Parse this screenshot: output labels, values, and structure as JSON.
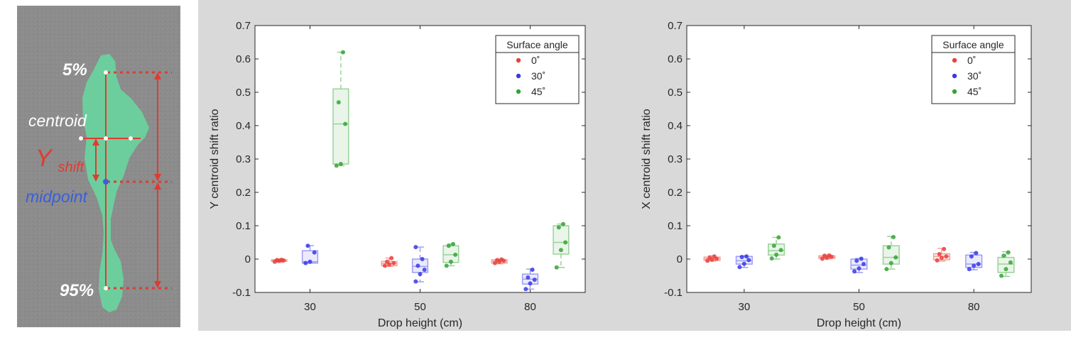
{
  "annotation": {
    "label_top": "5%",
    "label_bottom": "95%",
    "label_centroid": "centroid",
    "label_shift_main": "Y",
    "label_shift_sub": "shift",
    "label_midpoint": "midpoint"
  },
  "chart_data": [
    {
      "type": "box",
      "xlabel": "Drop height (cm)",
      "ylabel": "Y centroid shift ratio",
      "categories": [
        "30",
        "50",
        "80"
      ],
      "ylim": [
        -0.1,
        0.7
      ],
      "yticks": [
        -0.1,
        0,
        0.1,
        0.2,
        0.3,
        0.4,
        0.5,
        0.6,
        0.7
      ],
      "legend": {
        "title": "Surface angle",
        "position": "top-right"
      },
      "series": [
        {
          "name": "0˚",
          "color": "#e8413b",
          "boxes": [
            {
              "category": "30",
              "q1": -0.007,
              "median": -0.004,
              "q3": -0.002,
              "whisker_low": -0.01,
              "whisker_high": 0.0,
              "points": [
                -0.008,
                -0.005,
                -0.004,
                -0.003,
                -0.002
              ]
            },
            {
              "category": "50",
              "q1": -0.02,
              "median": -0.013,
              "q3": -0.007,
              "whisker_low": -0.022,
              "whisker_high": 0.003,
              "points": [
                -0.02,
                -0.016,
                -0.012,
                -0.008,
                0.003
              ]
            },
            {
              "category": "80",
              "q1": -0.012,
              "median": -0.006,
              "q3": -0.002,
              "whisker_low": -0.014,
              "whisker_high": 0.0,
              "points": [
                -0.012,
                -0.008,
                -0.005,
                -0.003,
                -0.001
              ]
            }
          ]
        },
        {
          "name": "30˚",
          "color": "#3a3ae8",
          "boxes": [
            {
              "category": "30",
              "q1": -0.012,
              "median": -0.008,
              "q3": 0.025,
              "whisker_low": -0.012,
              "whisker_high": 0.04,
              "points": [
                -0.012,
                -0.008,
                0.02,
                0.04
              ]
            },
            {
              "category": "50",
              "q1": -0.04,
              "median": -0.022,
              "q3": 0.0,
              "whisker_low": -0.068,
              "whisker_high": 0.036,
              "points": [
                -0.067,
                -0.045,
                -0.032,
                -0.02,
                0.0,
                0.036
              ]
            },
            {
              "category": "80",
              "q1": -0.075,
              "median": -0.06,
              "q3": -0.045,
              "whisker_low": -0.09,
              "whisker_high": -0.03,
              "points": [
                -0.09,
                -0.073,
                -0.062,
                -0.055,
                -0.032
              ]
            }
          ]
        },
        {
          "name": "45˚",
          "color": "#35a535",
          "boxes": [
            {
              "category": "30",
              "q1": 0.285,
              "median": 0.405,
              "q3": 0.51,
              "whisker_low": 0.28,
              "whisker_high": 0.62,
              "points": [
                0.28,
                0.285,
                0.405,
                0.47,
                0.62
              ]
            },
            {
              "category": "50",
              "q1": -0.01,
              "median": 0.013,
              "q3": 0.04,
              "whisker_low": -0.02,
              "whisker_high": 0.045,
              "points": [
                -0.02,
                -0.008,
                0.013,
                0.04,
                0.045
              ]
            },
            {
              "category": "80",
              "q1": 0.015,
              "median": 0.05,
              "q3": 0.1,
              "whisker_low": -0.025,
              "whisker_high": 0.105,
              "points": [
                -0.025,
                0.027,
                0.05,
                0.095,
                0.105
              ]
            }
          ]
        }
      ]
    },
    {
      "type": "box",
      "xlabel": "Drop height (cm)",
      "ylabel": "X centroid shift ratio",
      "categories": [
        "30",
        "50",
        "80"
      ],
      "ylim": [
        -0.1,
        0.7
      ],
      "yticks": [
        -0.1,
        0,
        0.1,
        0.2,
        0.3,
        0.4,
        0.5,
        0.6,
        0.7
      ],
      "legend": {
        "title": "Surface angle",
        "position": "top-right"
      },
      "series": [
        {
          "name": "0˚",
          "color": "#e8413b",
          "boxes": [
            {
              "category": "30",
              "q1": -0.004,
              "median": 0.001,
              "q3": 0.006,
              "whisker_low": -0.006,
              "whisker_high": 0.01,
              "points": [
                -0.005,
                -0.002,
                0.001,
                0.004,
                0.008
              ]
            },
            {
              "category": "50",
              "q1": 0.002,
              "median": 0.006,
              "q3": 0.01,
              "whisker_low": 0.0,
              "whisker_high": 0.012,
              "points": [
                0.001,
                0.004,
                0.007,
                0.01,
                0.011
              ]
            },
            {
              "category": "80",
              "q1": -0.002,
              "median": 0.008,
              "q3": 0.016,
              "whisker_low": -0.006,
              "whisker_high": 0.032,
              "points": [
                -0.004,
                0.004,
                0.008,
                0.015,
                0.03
              ]
            }
          ]
        },
        {
          "name": "30˚",
          "color": "#3a3ae8",
          "boxes": [
            {
              "category": "30",
              "q1": -0.015,
              "median": -0.005,
              "q3": 0.008,
              "whisker_low": -0.025,
              "whisker_high": 0.01,
              "points": [
                -0.024,
                -0.014,
                -0.003,
                0.006,
                0.008
              ]
            },
            {
              "category": "50",
              "q1": -0.03,
              "median": -0.018,
              "q3": 0.0,
              "whisker_low": -0.04,
              "whisker_high": 0.002,
              "points": [
                -0.037,
                -0.028,
                -0.015,
                -0.005,
                0.001
              ]
            },
            {
              "category": "80",
              "q1": -0.025,
              "median": -0.015,
              "q3": 0.012,
              "whisker_low": -0.032,
              "whisker_high": 0.02,
              "points": [
                -0.03,
                -0.02,
                -0.015,
                0.008,
                0.018
              ]
            }
          ]
        },
        {
          "name": "45˚",
          "color": "#35a535",
          "boxes": [
            {
              "category": "30",
              "q1": 0.012,
              "median": 0.025,
              "q3": 0.045,
              "whisker_low": 0.0,
              "whisker_high": 0.065,
              "points": [
                0.002,
                0.013,
                0.027,
                0.04,
                0.065
              ]
            },
            {
              "category": "50",
              "q1": -0.015,
              "median": 0.005,
              "q3": 0.04,
              "whisker_low": -0.03,
              "whisker_high": 0.068,
              "points": [
                -0.03,
                -0.012,
                0.005,
                0.035,
                0.066
              ]
            },
            {
              "category": "80",
              "q1": -0.04,
              "median": -0.015,
              "q3": 0.005,
              "whisker_low": -0.052,
              "whisker_high": 0.022,
              "points": [
                -0.05,
                -0.03,
                -0.01,
                0.01,
                0.02
              ]
            }
          ]
        }
      ]
    }
  ]
}
